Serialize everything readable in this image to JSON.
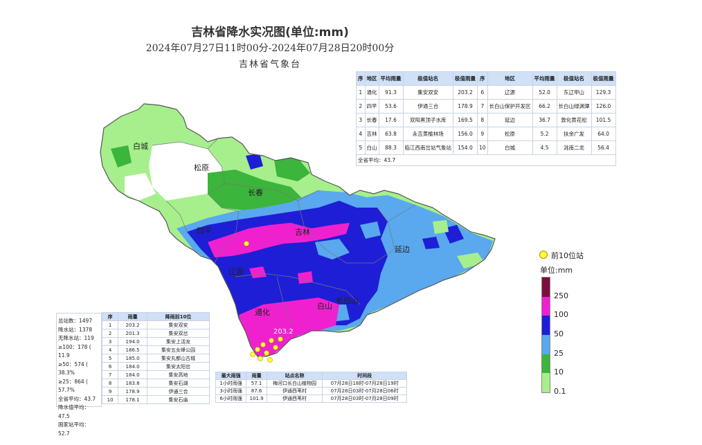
{
  "title": "吉林省降水实况图(单位:mm)",
  "time_range": "2024年07月27日11时00分-2024年07月28日20时00分",
  "organization": "吉林省气象台",
  "region_table": {
    "headers": [
      "序",
      "地区",
      "平均雨量",
      "极值站名",
      "极值雨量",
      "序",
      "地区",
      "平均雨量",
      "极值站名",
      "极值雨量"
    ],
    "rows": [
      [
        "1",
        "通化",
        "91.3",
        "集安双安",
        "203.2",
        "6",
        "辽源",
        "52.0",
        "东辽甲山",
        "129.3"
      ],
      [
        "2",
        "四平",
        "53.6",
        "伊通三合",
        "178.9",
        "7",
        "长白山保护开发区",
        "66.2",
        "长白山绿渊潭",
        "126.0"
      ],
      [
        "3",
        "长春",
        "17.6",
        "双阳黑顶子水库",
        "169.5",
        "8",
        "延边",
        "36.7",
        "敦化黄花松",
        "101.5"
      ],
      [
        "4",
        "吉林",
        "63.8",
        "永吉黄榆林场",
        "156.0",
        "9",
        "松原",
        "5.2",
        "扶余广发",
        "64.0"
      ],
      [
        "5",
        "白山",
        "88.3",
        "临江西南岔站气象站",
        "154.0",
        "10",
        "白城",
        "4.5",
        "洮南二龙",
        "56.4"
      ]
    ],
    "avg": "全省平均：43.7"
  },
  "stats": [
    "总站数：1497",
    "降水站：1378",
    "无降水站：119",
    "≥100：178 ( 11.9",
    "≥50：574 ( 38.3%",
    "≥25：864 ( 57.7%",
    "全省平均：43.7",
    "降水值平均：47.5",
    "国家站平均：52.7"
  ],
  "top10_table": {
    "headers": [
      "序",
      "雨量",
      "降雨前10位"
    ],
    "rows": [
      [
        "1",
        "203.2",
        "集安双安"
      ],
      [
        "2",
        "201.3",
        "集安双岔"
      ],
      [
        "3",
        "194.0",
        "集安上活龙"
      ],
      [
        "4",
        "186.5",
        "集安五女峰公园"
      ],
      [
        "5",
        "185.0",
        "集安丸都山古城"
      ],
      [
        "6",
        "184.0",
        "集安太阳岔"
      ],
      [
        "7",
        "184.0",
        "集安高地"
      ],
      [
        "8",
        "183.8",
        "集安石湖"
      ],
      [
        "9",
        "178.9",
        "伊通三合"
      ],
      [
        "10",
        "178.1",
        "集安石庙"
      ]
    ]
  },
  "max_table": {
    "headers": [
      "最大雨强",
      "雨量",
      "站点名称",
      "时间段"
    ],
    "rows": [
      [
        "1小时雨强",
        "57.1",
        "梅河口长白山植物园",
        "07月28日18时-07月28日19时"
      ],
      [
        "3小时雨强",
        "87.6",
        "伊通西苇村",
        "07月28日03时-07月28日06时"
      ],
      [
        "6小时雨强",
        "101.9",
        "伊通西苇村",
        "07月28日03时-07月28日09时"
      ]
    ]
  },
  "map": {
    "cities": [
      "白城",
      "松原",
      "长春",
      "四平",
      "吉林",
      "辽源",
      "延边",
      "通化",
      "白山",
      "长白山"
    ],
    "max_value_label": "203.2"
  },
  "legend": {
    "top10_marker": "前10位站",
    "unit": "单位:mm",
    "levels": [
      "250",
      "100",
      "50",
      "25",
      "10",
      "0.1"
    ],
    "colors": [
      "#7a0d3c",
      "#ef21ce",
      "#1e1ed6",
      "#5aa8ee",
      "#3bb53b",
      "#a6ef8c"
    ]
  }
}
